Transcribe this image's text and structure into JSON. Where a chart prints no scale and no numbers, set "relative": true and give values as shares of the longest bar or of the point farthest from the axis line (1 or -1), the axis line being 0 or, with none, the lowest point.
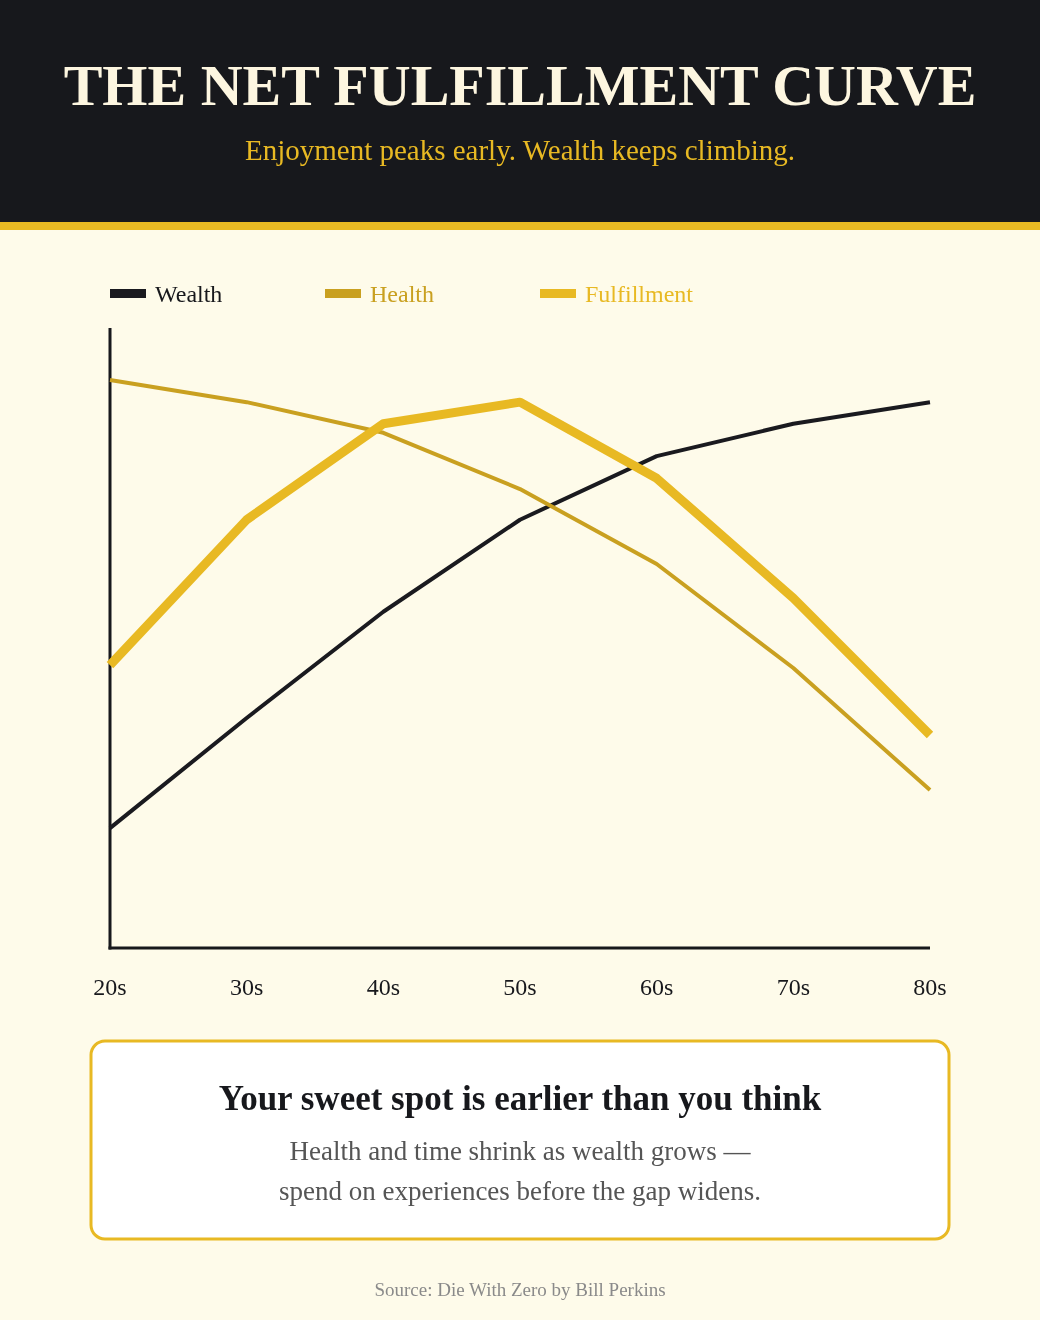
{
  "chart_data": {
    "type": "line",
    "title": "THE NET FULFILLMENT CURVE",
    "subtitle": "Enjoyment peaks early. Wealth keeps climbing.",
    "relative": true,
    "legend": "top left",
    "marker": "none",
    "line_style": "solid",
    "categories": [
      "20s",
      "30s",
      "40s",
      "50s",
      "60s",
      "70s",
      "80s"
    ],
    "series": [
      {
        "name": "Wealth",
        "color": "#1a1a1f",
        "values": [
          0.211,
          0.405,
          0.592,
          0.754,
          0.866,
          0.923,
          0.961
        ]
      },
      {
        "name": "Health",
        "color": "#c9a020",
        "values": [
          1,
          0.961,
          0.907,
          0.808,
          0.676,
          0.493,
          0.278
        ]
      },
      {
        "name": "Fulfillment",
        "color": "#e8b923",
        "values": [
          0.498,
          0.754,
          0.923,
          0.961,
          0.827,
          0.616,
          0.375
        ]
      }
    ],
    "annotations": [
      "Your sweet spot is earlier than you think",
      "Health and time shrink as wealth grows — spend on experiences before the gap widens.",
      "Source: Die With Zero by Bill Perkins"
    ]
  }
}
